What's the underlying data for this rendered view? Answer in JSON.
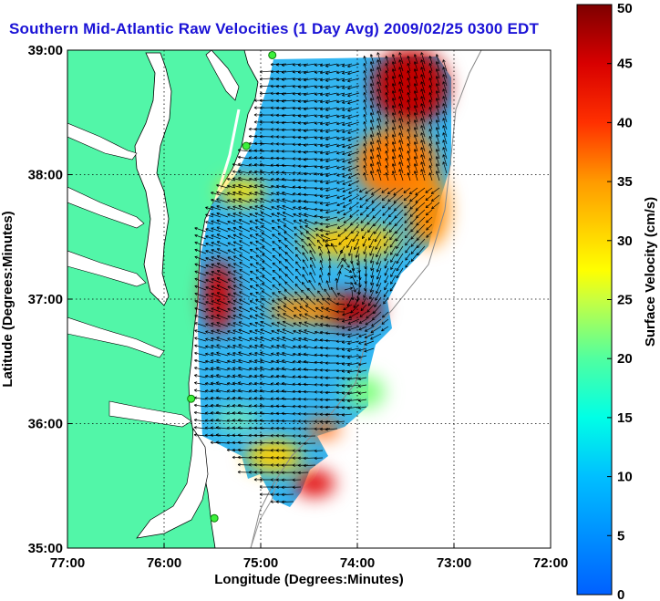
{
  "chart_data": {
    "type": "heatmap",
    "title": "Southern Mid-Atlantic Raw Velocities (1 Day Avg) 2009/02/25 0300 EDT",
    "xlabel": "Longitude (Degrees:Minutes)",
    "ylabel": "Latitude (Degrees:Minutes)",
    "x_ticks": [
      "77:00",
      "76:00",
      "75:00",
      "74:00",
      "73:00",
      "72:00"
    ],
    "x_tick_values": [
      -77,
      -76,
      -75,
      -74,
      -73,
      -72
    ],
    "y_ticks": [
      "35:00",
      "36:00",
      "37:00",
      "38:00",
      "39:00"
    ],
    "y_tick_values": [
      35,
      36,
      37,
      38,
      39
    ],
    "xlim": [
      -77,
      -72
    ],
    "ylim": [
      35,
      39
    ],
    "grid": true,
    "colorbar": {
      "label": "Surface Velocity (cm/s)",
      "ticks": [
        0,
        5,
        10,
        15,
        20,
        25,
        30,
        35,
        40,
        45,
        50
      ],
      "range": [
        0,
        50
      ]
    },
    "velocity_regions": [
      {
        "lon": -73.4,
        "lat": 38.7,
        "speed": 48
      },
      {
        "lon": -74.0,
        "lat": 36.9,
        "speed": 47
      },
      {
        "lon": -75.4,
        "lat": 36.9,
        "speed": 44
      },
      {
        "lon": -74.2,
        "lat": 37.4,
        "speed": 30
      },
      {
        "lon": -73.1,
        "lat": 37.9,
        "speed": 34
      },
      {
        "lon": -74.8,
        "lat": 38.5,
        "speed": 10
      },
      {
        "lon": -74.6,
        "lat": 36.3,
        "speed": 9
      },
      {
        "lon": -74.3,
        "lat": 35.6,
        "speed": 40
      }
    ],
    "radar_sites": [
      {
        "lon": -74.88,
        "lat": 38.96
      },
      {
        "lon": -75.15,
        "lat": 38.23
      },
      {
        "lon": -75.72,
        "lat": 36.2
      },
      {
        "lon": -75.48,
        "lat": 35.24
      }
    ]
  }
}
